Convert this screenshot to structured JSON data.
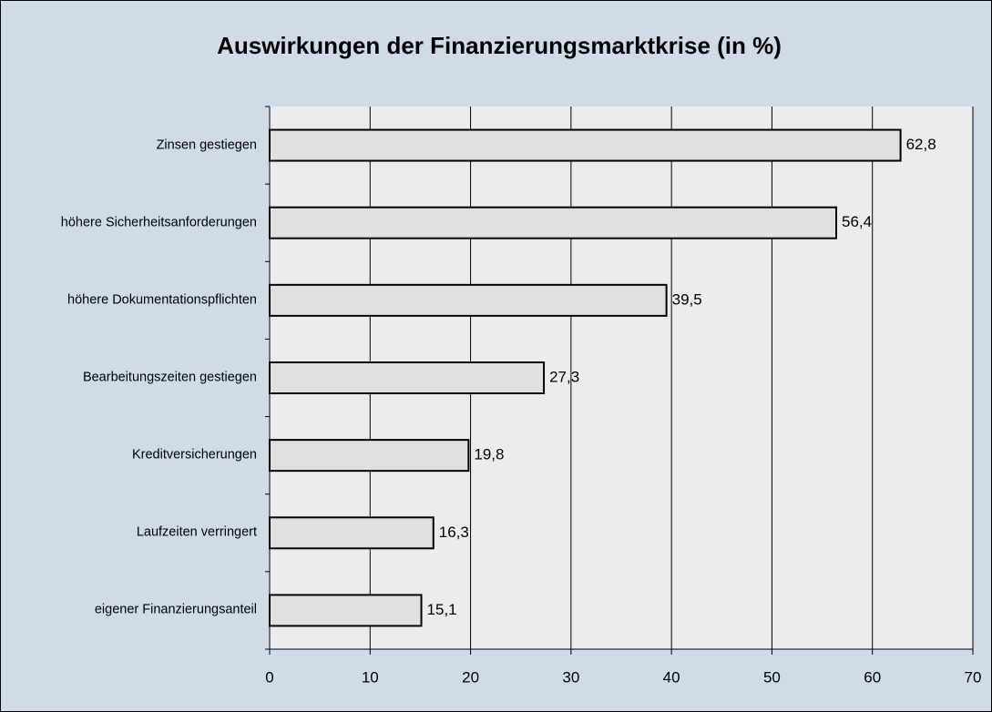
{
  "chart_data": {
    "type": "bar",
    "orientation": "horizontal",
    "title": "Auswirkungen der Finanzierungsmarktkrise (in %)",
    "categories": [
      "Zinsen gestiegen",
      "höhere Sicherheitsanforderungen",
      "höhere Dokumentationspflichten",
      "Bearbeitungszeiten gestiegen",
      "Kreditversicherungen",
      "Laufzeiten verringert",
      "eigener Finanzierungsanteil"
    ],
    "values": [
      62.8,
      56.4,
      39.5,
      27.3,
      19.8,
      16.3,
      15.1
    ],
    "value_labels": [
      "62,8",
      "56,4",
      "39,5",
      "27,3",
      "19,8",
      "16,3",
      "15,1"
    ],
    "color": "#e0e0e0",
    "xlim": [
      0,
      70
    ],
    "xticks": [
      0,
      10,
      20,
      30,
      40,
      50,
      60,
      70
    ],
    "grid": true
  }
}
